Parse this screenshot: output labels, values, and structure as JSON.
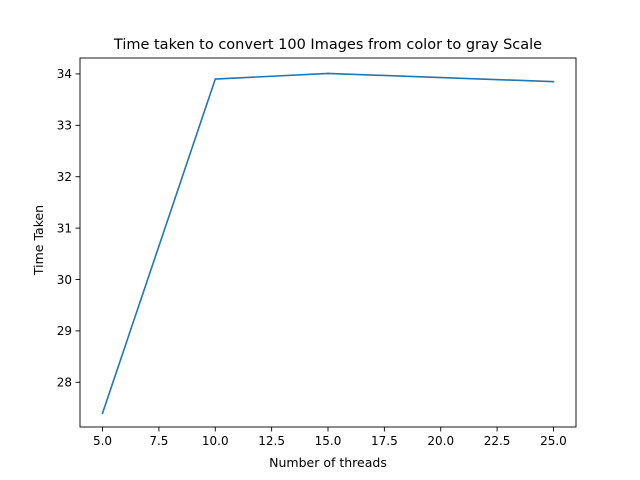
{
  "chart_data": {
    "type": "line",
    "title": "Time taken to convert 100 Images from color to gray Scale",
    "xlabel": "Number of threads",
    "ylabel": "Time Taken",
    "x": [
      5,
      10,
      15,
      20,
      25
    ],
    "series": [
      {
        "values": [
          27.4,
          33.9,
          34.01,
          33.93,
          33.85
        ],
        "color": "#1f77b4"
      }
    ],
    "xlim": [
      4,
      26
    ],
    "ylim": [
      27.13,
      34.31
    ],
    "xticks": [
      5.0,
      7.5,
      10.0,
      12.5,
      15.0,
      17.5,
      20.0,
      22.5,
      25.0
    ],
    "xtick_labels": [
      "5.0",
      "7.5",
      "10.0",
      "12.5",
      "15.0",
      "17.5",
      "20.0",
      "22.5",
      "25.0"
    ],
    "yticks": [
      28,
      29,
      30,
      31,
      32,
      33,
      34
    ],
    "ytick_labels": [
      "28",
      "29",
      "30",
      "31",
      "32",
      "33",
      "34"
    ],
    "grid": false,
    "legend": "none"
  }
}
